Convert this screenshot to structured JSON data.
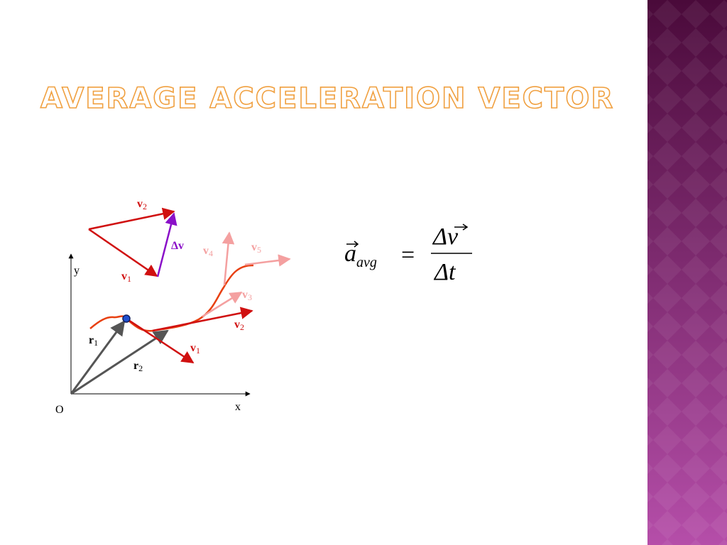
{
  "title": "AVERAGE ACCELERATION VECTOR",
  "diagram": {
    "labels": [
      {
        "text": "v",
        "sub": "2"
      },
      {
        "text": "Δv"
      },
      {
        "text": "v",
        "sub": "1"
      },
      {
        "text": "v",
        "sub": "4"
      },
      {
        "text": "v",
        "sub": "5"
      },
      {
        "text": "v",
        "sub": "3"
      },
      {
        "text": "v",
        "sub": "2"
      },
      {
        "text": "v",
        "sub": "1"
      },
      {
        "text": "y"
      },
      {
        "text": "r",
        "sub": "1"
      },
      {
        "text": "r",
        "sub": "2"
      },
      {
        "text": "O"
      },
      {
        "text": "x"
      }
    ]
  },
  "formula": {
    "symbol": "a",
    "sub": "avg",
    "equals": "=",
    "numerator": "Δv",
    "denominator": "Δt"
  }
}
